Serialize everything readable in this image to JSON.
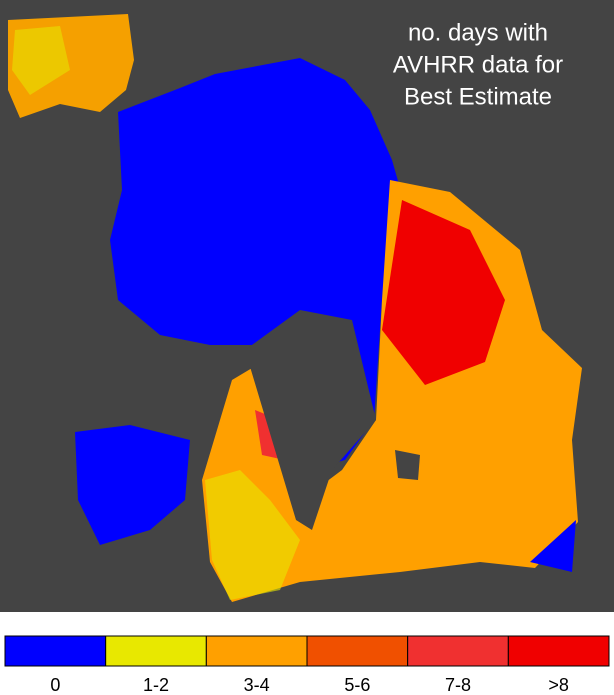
{
  "title_lines": [
    "no. days with",
    "AVHRR data for",
    "Best Estimate"
  ],
  "legend": [
    {
      "label": "0",
      "color": "#0000ff"
    },
    {
      "label": "1-2",
      "color": "#e8e800"
    },
    {
      "label": "3-4",
      "color": "#ffa000"
    },
    {
      "label": "5-6",
      "color": "#f05000"
    },
    {
      "label": "7-8",
      "color": "#f03030"
    },
    {
      "label": ">8",
      "color": "#f00000"
    }
  ]
}
